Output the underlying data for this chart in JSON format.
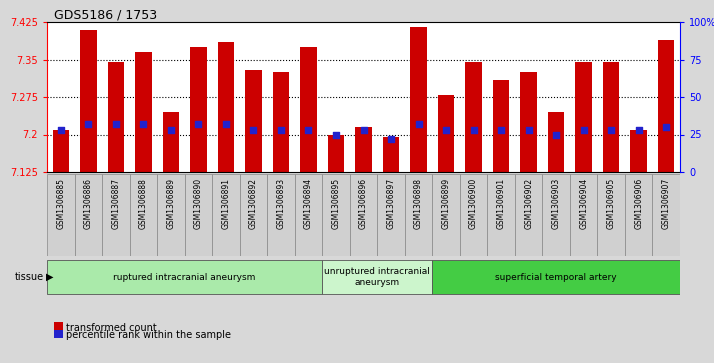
{
  "title": "GDS5186 / 1753",
  "samples": [
    "GSM1306885",
    "GSM1306886",
    "GSM1306887",
    "GSM1306888",
    "GSM1306889",
    "GSM1306890",
    "GSM1306891",
    "GSM1306892",
    "GSM1306893",
    "GSM1306894",
    "GSM1306895",
    "GSM1306896",
    "GSM1306897",
    "GSM1306898",
    "GSM1306899",
    "GSM1306900",
    "GSM1306901",
    "GSM1306902",
    "GSM1306903",
    "GSM1306904",
    "GSM1306905",
    "GSM1306906",
    "GSM1306907"
  ],
  "bar_values": [
    7.21,
    7.41,
    7.345,
    7.365,
    7.245,
    7.375,
    7.385,
    7.33,
    7.325,
    7.375,
    7.2,
    7.215,
    7.195,
    7.415,
    7.28,
    7.345,
    7.31,
    7.325,
    7.245,
    7.345,
    7.345,
    7.21,
    7.39
  ],
  "pct_ranks": [
    28,
    32,
    32,
    32,
    28,
    32,
    32,
    28,
    28,
    28,
    25,
    28,
    22,
    32,
    28,
    28,
    28,
    28,
    25,
    28,
    28,
    28,
    30
  ],
  "ylim_left": [
    7.125,
    7.425
  ],
  "ylim_right": [
    0,
    100
  ],
  "yticks_left": [
    7.125,
    7.2,
    7.275,
    7.35,
    7.425
  ],
  "yticks_right": [
    0,
    25,
    50,
    75,
    100
  ],
  "ytick_labels_right": [
    "0",
    "25",
    "50",
    "75",
    "100%"
  ],
  "bar_color": "#cc0000",
  "dot_color": "#2222cc",
  "bg_color": "#d8d8d8",
  "xtick_bg": "#d0d0d0",
  "plot_bg": "#ffffff",
  "tissue_groups": [
    {
      "label": "ruptured intracranial aneurysm",
      "start": 0,
      "end": 9,
      "color": "#aaeaaa"
    },
    {
      "label": "unruptured intracranial\naneurysm",
      "start": 10,
      "end": 13,
      "color": "#ccf5cc"
    },
    {
      "label": "superficial temporal artery",
      "start": 14,
      "end": 22,
      "color": "#44cc44"
    }
  ],
  "tissue_label": "tissue",
  "legend_bar_label": "transformed count",
  "legend_dot_label": "percentile rank within the sample"
}
